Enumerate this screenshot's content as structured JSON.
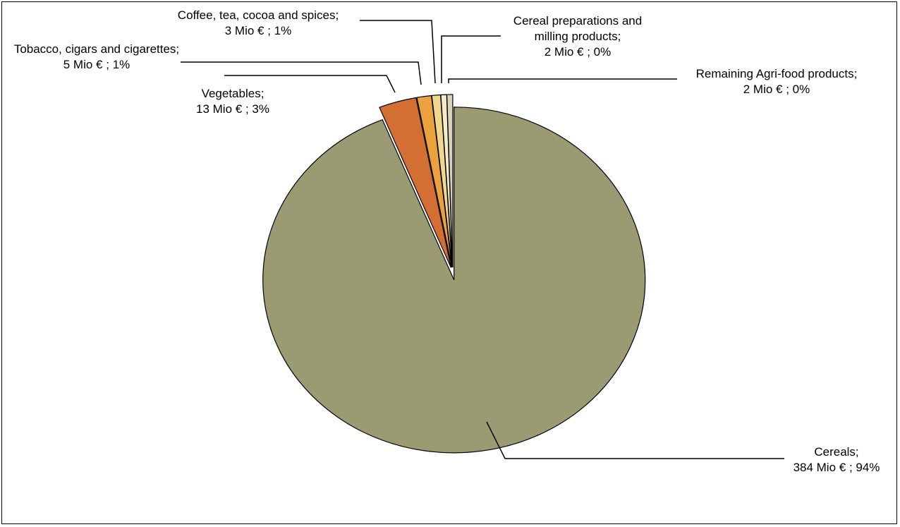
{
  "chart_data": {
    "type": "pie",
    "title": "",
    "unit": "Mio €",
    "slices": [
      {
        "name": "Cereals",
        "value": 384,
        "percent": 94,
        "color": "#9a9b72",
        "label_lines": [
          "Cereals;",
          "384 Mio € ; 94%"
        ]
      },
      {
        "name": "Vegetables",
        "value": 13,
        "percent": 3,
        "color": "#d36f33",
        "label_lines": [
          "Vegetables;",
          "13 Mio € ; 3%"
        ]
      },
      {
        "name": "Tobacco, cigars and cigarettes",
        "value": 5,
        "percent": 1,
        "color": "#eba23d",
        "label_lines": [
          "Tobacco, cigars and cigarettes;",
          "5 Mio € ; 1%"
        ]
      },
      {
        "name": "Coffee, tea, cocoa and spices",
        "value": 3,
        "percent": 1,
        "color": "#f0d88a",
        "label_lines": [
          "Coffee, tea, cocoa and spices;",
          "3 Mio € ; 1%"
        ]
      },
      {
        "name": "Cereal preparations and milling products",
        "value": 2,
        "percent": 0,
        "color": "#f3ecc7",
        "label_lines": [
          "Cereal preparations and",
          "milling products;",
          "2 Mio € ; 0%"
        ]
      },
      {
        "name": "Remaining Agri-food products",
        "value": 2,
        "percent": 0,
        "color": "#d9d4b8",
        "label_lines": [
          "Remaining Agri-food products;",
          "2 Mio € ; 0%"
        ]
      }
    ],
    "legend": "none"
  }
}
